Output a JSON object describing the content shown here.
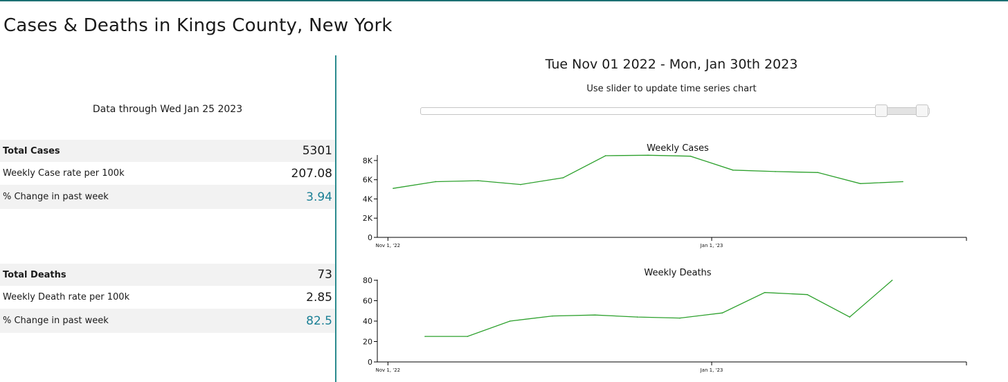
{
  "page": {
    "title": "Cases & Deaths in Kings County, New York",
    "data_through": "Data through Wed Jan 25 2023"
  },
  "cases_stats": [
    {
      "label": "Total Cases",
      "value": "5301"
    },
    {
      "label": "Weekly Case rate per 100k",
      "value": "207.08"
    },
    {
      "label": "% Change in past week",
      "value": "3.94"
    }
  ],
  "deaths_stats": [
    {
      "label": "Total Deaths",
      "value": "73"
    },
    {
      "label": "Weekly Death rate per 100k",
      "value": "2.85"
    },
    {
      "label": "% Change in past week",
      "value": "82.5"
    }
  ],
  "range": {
    "text": "Tue Nov 01 2022 - Mon, Jan 30th 2023",
    "hint": "Use slider to update time series chart",
    "slider": {
      "min_handle_fraction": 0.905,
      "max_handle_fraction": 0.985
    }
  },
  "colors": {
    "line": "#2ca02c",
    "accent": "#1a7f95",
    "divider": "#2a8a8e"
  },
  "chart_data": [
    {
      "type": "line",
      "title": "Weekly Cases",
      "x_domain": [
        "2022-10-30",
        "2023-02-18"
      ],
      "x_ticks": [
        {
          "date": "2022-11-01",
          "label": "Nov 1, '22"
        },
        {
          "date": "2023-01-01",
          "label": "Jan 1, '23"
        }
      ],
      "ylim": [
        0,
        8500
      ],
      "y_ticks": [
        {
          "value": 0,
          "label": "0"
        },
        {
          "value": 2000,
          "label": "2K"
        },
        {
          "value": 4000,
          "label": "4K"
        },
        {
          "value": 6000,
          "label": "6K"
        },
        {
          "value": 8000,
          "label": "8K"
        }
      ],
      "x": [
        "2022-11-02",
        "2022-11-10",
        "2022-11-18",
        "2022-11-26",
        "2022-12-04",
        "2022-12-12",
        "2022-12-20",
        "2022-12-28",
        "2023-01-05",
        "2023-01-13",
        "2023-01-21",
        "2023-01-29",
        "2023-02-06"
      ],
      "values": [
        5100,
        5800,
        5900,
        5500,
        6200,
        8500,
        8550,
        8450,
        7000,
        6850,
        6750,
        5600,
        5800
      ]
    },
    {
      "type": "line",
      "title": "Weekly Deaths",
      "x_domain": [
        "2022-10-30",
        "2023-02-18"
      ],
      "x_ticks": [
        {
          "date": "2022-11-01",
          "label": "Nov 1, '22"
        },
        {
          "date": "2023-01-01",
          "label": "Jan 1, '23"
        }
      ],
      "ylim": [
        0,
        80
      ],
      "y_ticks": [
        {
          "value": 0,
          "label": "0"
        },
        {
          "value": 20,
          "label": "20"
        },
        {
          "value": 40,
          "label": "40"
        },
        {
          "value": 60,
          "label": "60"
        },
        {
          "value": 80,
          "label": "80"
        }
      ],
      "x": [
        "2022-11-08",
        "2022-11-16",
        "2022-11-24",
        "2022-12-02",
        "2022-12-10",
        "2022-12-18",
        "2022-12-26",
        "2023-01-03",
        "2023-01-11",
        "2023-01-19",
        "2023-01-27",
        "2023-02-04"
      ],
      "values": [
        25,
        25,
        40,
        45,
        46,
        44,
        43,
        48,
        68,
        66,
        44,
        80
      ]
    }
  ]
}
